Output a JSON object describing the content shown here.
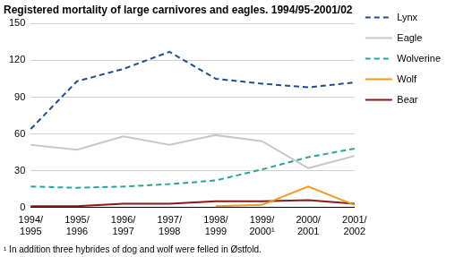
{
  "chart_data": {
    "type": "line",
    "title": "Registered mortality of large carnivores and eagles. 1994/95-2001/02",
    "footnote": "¹ In addition three hybrides of dog and wolf were felled in Østfold.",
    "categories": [
      "1994/1995",
      "1995/1996",
      "1996/1997",
      "1997/1998",
      "1998/1999",
      "1999/2000¹",
      "2000/2001",
      "2001/2002"
    ],
    "series": [
      {
        "name": "Lynx",
        "color": "#1f4e8c",
        "line_style": "dashed",
        "values": [
          64,
          103,
          113,
          127,
          105,
          101,
          98,
          102
        ]
      },
      {
        "name": "Eagle",
        "color": "#c8c8c8",
        "line_style": "solid",
        "values": [
          51,
          47,
          58,
          51,
          59,
          54,
          32,
          42
        ]
      },
      {
        "name": "Wolverine",
        "color": "#2aa39a",
        "line_style": "dashed",
        "values": [
          17,
          16,
          17,
          19,
          22,
          31,
          41,
          48
        ]
      },
      {
        "name": "Wolf",
        "color": "#f39a1e",
        "line_style": "solid",
        "values": [
          null,
          null,
          null,
          null,
          1,
          2,
          17,
          2
        ]
      },
      {
        "name": "Bear",
        "color": "#8b1a1a",
        "line_style": "solid",
        "values": [
          1,
          1,
          3,
          3,
          5,
          5,
          6,
          3
        ]
      }
    ],
    "ylim": [
      0,
      150
    ],
    "yticks": [
      0,
      30,
      60,
      90,
      120,
      150
    ],
    "grid": true,
    "legend": "right"
  }
}
